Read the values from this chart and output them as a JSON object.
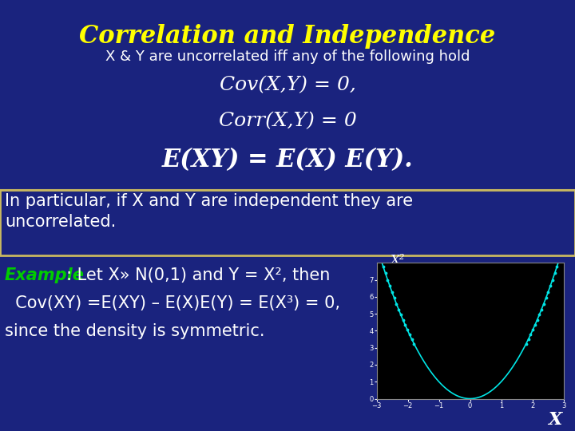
{
  "title": "Correlation and Independence",
  "subtitle": "X & Y are uncorrelated iff any of the following hold",
  "line1": "Cov(X,Y) = 0,",
  "line2": "Corr(X,Y) = 0",
  "line3": "E(XY) = E(X) E(Y).",
  "particular": "In particular, if X and Y are independent they are\nuncorrelated.",
  "example_label": "Example",
  "example_line1": ": Let X» N(0,1) and Y = X², then",
  "example_line2": "  Cov(XY) =E(XY) – E(X)E(Y) = E(X³) = 0,",
  "example_line3": "since the density is symmetric.",
  "bg_color": "#1a237e",
  "title_color": "#ffff00",
  "subtitle_color": "#ffffff",
  "main_text_color": "#ffffff",
  "example_label_color": "#00cc00",
  "box_border_color": "#c8b860",
  "plot_bg": "#000000",
  "plot_line_color": "#00e5e5",
  "x_label": "X",
  "y_label": "X²",
  "title_fontsize": 22,
  "subtitle_fontsize": 13,
  "formula_fontsize": 18,
  "formula3_fontsize": 22,
  "particular_fontsize": 15,
  "example_fontsize": 15
}
